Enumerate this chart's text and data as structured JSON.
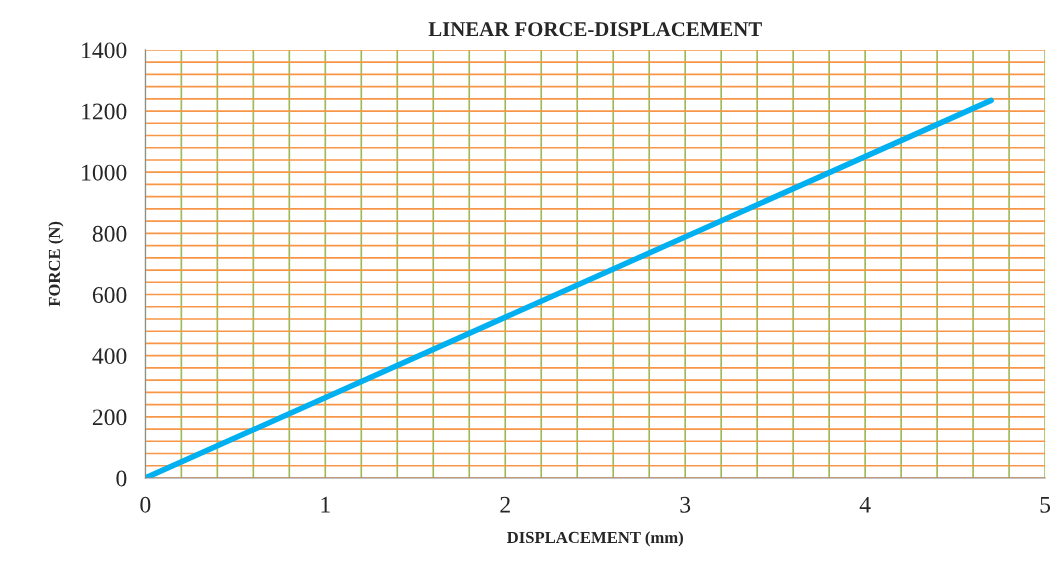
{
  "chart_data": {
    "type": "line",
    "title": "LINEAR FORCE-DISPLACEMENT",
    "xlabel": "DISPLACEMENT (mm)",
    "ylabel": "FORCE (N)",
    "x": [
      0,
      4.7
    ],
    "series": [
      {
        "color": "#00b0f0",
        "values": [
          0,
          1235
        ]
      }
    ],
    "xlim": [
      0,
      5
    ],
    "ylim": [
      0,
      1400
    ],
    "xticks": [
      0,
      {
        "value": 0.2,
        "label": null
      },
      {
        "value": 0.4,
        "label": null
      },
      {
        "value": 0.6,
        "label": null
      },
      {
        "value": 0.8,
        "label": null
      },
      1,
      {
        "value": 1.2,
        "label": null
      },
      {
        "value": 1.4,
        "label": null
      },
      {
        "value": 1.6,
        "label": null
      },
      {
        "value": 1.8,
        "label": null
      },
      2,
      {
        "value": 2.2,
        "label": null
      },
      {
        "value": 2.4,
        "label": null
      },
      {
        "value": 2.6,
        "label": null
      },
      {
        "value": 2.8,
        "label": null
      },
      3,
      {
        "value": 3.2,
        "label": null
      },
      {
        "value": 3.4,
        "label": null
      },
      {
        "value": 3.6,
        "label": null
      },
      {
        "value": 3.8,
        "label": null
      },
      4,
      {
        "value": 4.2,
        "label": null
      },
      {
        "value": 4.4,
        "label": null
      },
      {
        "value": 4.6,
        "label": null
      },
      {
        "value": 4.8,
        "label": null
      },
      5
    ],
    "yticks": [
      0,
      {
        "value": 40,
        "label": null
      },
      {
        "value": 80,
        "label": null
      },
      {
        "value": 120,
        "label": null
      },
      {
        "value": 160,
        "label": null
      },
      200,
      {
        "value": 240,
        "label": null
      },
      {
        "value": 280,
        "label": null
      },
      {
        "value": 320,
        "label": null
      },
      {
        "value": 360,
        "label": null
      },
      400,
      {
        "value": 440,
        "label": null
      },
      {
        "value": 480,
        "label": null
      },
      {
        "value": 520,
        "label": null
      },
      {
        "value": 560,
        "label": null
      },
      600,
      {
        "value": 640,
        "label": null
      },
      {
        "value": 680,
        "label": null
      },
      {
        "value": 720,
        "label": null
      },
      {
        "value": 760,
        "label": null
      },
      800,
      {
        "value": 840,
        "label": null
      },
      {
        "value": 880,
        "label": null
      },
      {
        "value": 920,
        "label": null
      },
      {
        "value": 960,
        "label": null
      },
      1000,
      {
        "value": 1040,
        "label": null
      },
      {
        "value": 1080,
        "label": null
      },
      {
        "value": 1120,
        "label": null
      },
      {
        "value": 1160,
        "label": null
      },
      1200,
      {
        "value": 1240,
        "label": null
      },
      {
        "value": 1280,
        "label": null
      },
      {
        "value": 1320,
        "label": null
      },
      {
        "value": 1360,
        "label": null
      },
      1400
    ],
    "grid": true,
    "marker": "none",
    "line_style": "solid"
  }
}
